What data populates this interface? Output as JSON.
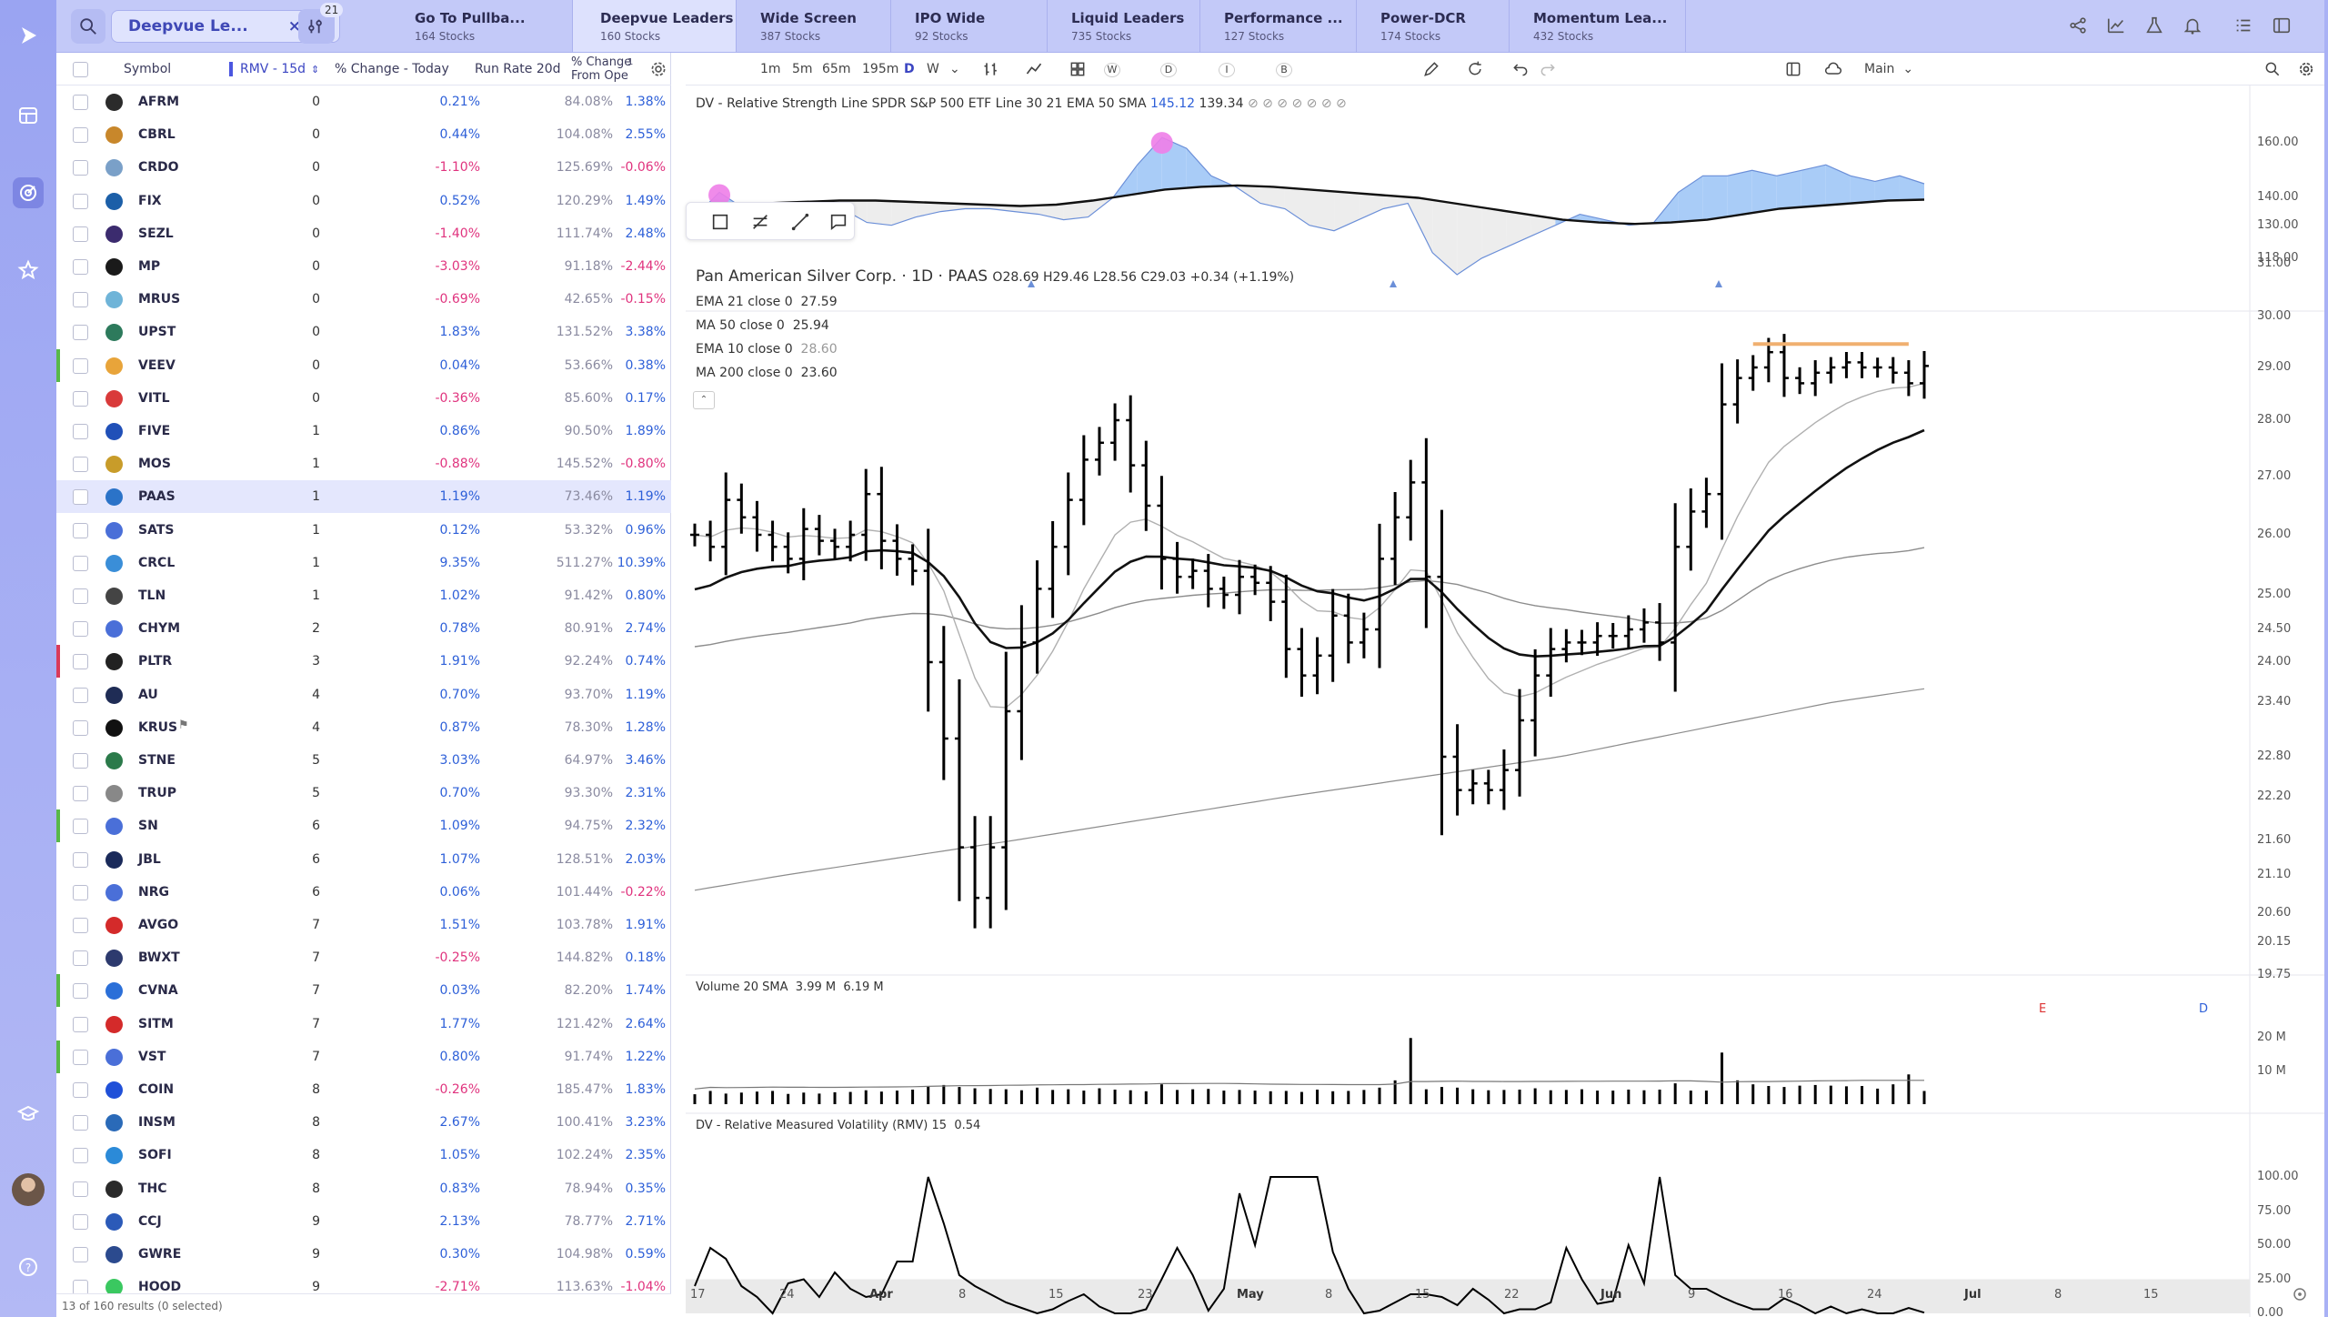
{
  "watchlist": {
    "name": "Deepvue Le...",
    "filter_count": "21"
  },
  "tabs": [
    {
      "name": "Go To Pullba...",
      "count": "164 Stocks"
    },
    {
      "name": "Deepvue Leaders",
      "count": "160 Stocks"
    },
    {
      "name": "Wide Screen",
      "count": "387 Stocks"
    },
    {
      "name": "IPO Wide",
      "count": "92 Stocks"
    },
    {
      "name": "Liquid Leaders",
      "count": "735 Stocks"
    },
    {
      "name": "Performance ...",
      "count": "127 Stocks"
    },
    {
      "name": "Power-DCR",
      "count": "174 Stocks"
    },
    {
      "name": "Momentum Lea...",
      "count": "432 Stocks"
    }
  ],
  "table": {
    "headers": {
      "symbol": "Symbol",
      "rmv": "RMV - 15d",
      "pct": "% Change - Today",
      "rr": "Run Rate 20d",
      "fo1": "% Change",
      "fo2": "From Ope"
    },
    "header_badge": "1",
    "rows": [
      {
        "symbol": "AFRM",
        "rmv": "0",
        "pct": "0.21%",
        "rr": "84.08%",
        "fo": "1.38%"
      },
      {
        "symbol": "CBRL",
        "rmv": "0",
        "pct": "0.44%",
        "rr": "104.08%",
        "fo": "2.55%"
      },
      {
        "symbol": "CRDO",
        "rmv": "0",
        "pct": "-1.10%",
        "rr": "125.69%",
        "fo": "-0.06%"
      },
      {
        "symbol": "FIX",
        "rmv": "0",
        "pct": "0.52%",
        "rr": "120.29%",
        "fo": "1.49%"
      },
      {
        "symbol": "SEZL",
        "rmv": "0",
        "pct": "-1.40%",
        "rr": "111.74%",
        "fo": "2.48%"
      },
      {
        "symbol": "MP",
        "rmv": "0",
        "pct": "-3.03%",
        "rr": "91.18%",
        "fo": "-2.44%"
      },
      {
        "symbol": "MRUS",
        "rmv": "0",
        "pct": "-0.69%",
        "rr": "42.65%",
        "fo": "-0.15%"
      },
      {
        "symbol": "UPST",
        "rmv": "0",
        "pct": "1.83%",
        "rr": "131.52%",
        "fo": "3.38%"
      },
      {
        "symbol": "VEEV",
        "rmv": "0",
        "pct": "0.04%",
        "rr": "53.66%",
        "fo": "0.38%"
      },
      {
        "symbol": "VITL",
        "rmv": "0",
        "pct": "-0.36%",
        "rr": "85.60%",
        "fo": "0.17%"
      },
      {
        "symbol": "FIVE",
        "rmv": "1",
        "pct": "0.86%",
        "rr": "90.50%",
        "fo": "1.89%"
      },
      {
        "symbol": "MOS",
        "rmv": "1",
        "pct": "-0.88%",
        "rr": "145.52%",
        "fo": "-0.80%"
      },
      {
        "symbol": "PAAS",
        "rmv": "1",
        "pct": "1.19%",
        "rr": "73.46%",
        "fo": "1.19%"
      },
      {
        "symbol": "SATS",
        "rmv": "1",
        "pct": "0.12%",
        "rr": "53.32%",
        "fo": "0.96%"
      },
      {
        "symbol": "CRCL",
        "rmv": "1",
        "pct": "9.35%",
        "rr": "511.27%",
        "fo": "10.39%"
      },
      {
        "symbol": "TLN",
        "rmv": "1",
        "pct": "1.02%",
        "rr": "91.42%",
        "fo": "0.80%"
      },
      {
        "symbol": "CHYM",
        "rmv": "2",
        "pct": "0.78%",
        "rr": "80.91%",
        "fo": "2.74%"
      },
      {
        "symbol": "PLTR",
        "rmv": "3",
        "pct": "1.91%",
        "rr": "92.24%",
        "fo": "0.74%"
      },
      {
        "symbol": "AU",
        "rmv": "4",
        "pct": "0.70%",
        "rr": "93.70%",
        "fo": "1.19%"
      },
      {
        "symbol": "KRUS",
        "rmv": "4",
        "pct": "0.87%",
        "rr": "78.30%",
        "fo": "1.28%"
      },
      {
        "symbol": "STNE",
        "rmv": "5",
        "pct": "3.03%",
        "rr": "64.97%",
        "fo": "3.46%"
      },
      {
        "symbol": "TRUP",
        "rmv": "5",
        "pct": "0.70%",
        "rr": "93.30%",
        "fo": "2.31%"
      },
      {
        "symbol": "SN",
        "rmv": "6",
        "pct": "1.09%",
        "rr": "94.75%",
        "fo": "2.32%"
      },
      {
        "symbol": "JBL",
        "rmv": "6",
        "pct": "1.07%",
        "rr": "128.51%",
        "fo": "2.03%"
      },
      {
        "symbol": "NRG",
        "rmv": "6",
        "pct": "0.06%",
        "rr": "101.44%",
        "fo": "-0.22%"
      },
      {
        "symbol": "AVGO",
        "rmv": "7",
        "pct": "1.51%",
        "rr": "103.78%",
        "fo": "1.91%"
      },
      {
        "symbol": "BWXT",
        "rmv": "7",
        "pct": "-0.25%",
        "rr": "144.82%",
        "fo": "0.18%"
      },
      {
        "symbol": "CVNA",
        "rmv": "7",
        "pct": "0.03%",
        "rr": "82.20%",
        "fo": "1.74%"
      },
      {
        "symbol": "SITM",
        "rmv": "7",
        "pct": "1.77%",
        "rr": "121.42%",
        "fo": "2.64%"
      },
      {
        "symbol": "VST",
        "rmv": "7",
        "pct": "0.80%",
        "rr": "91.74%",
        "fo": "1.22%"
      },
      {
        "symbol": "COIN",
        "rmv": "8",
        "pct": "-0.26%",
        "rr": "185.47%",
        "fo": "1.83%"
      },
      {
        "symbol": "INSM",
        "rmv": "8",
        "pct": "2.67%",
        "rr": "100.41%",
        "fo": "3.23%"
      },
      {
        "symbol": "SOFI",
        "rmv": "8",
        "pct": "1.05%",
        "rr": "102.24%",
        "fo": "2.35%"
      },
      {
        "symbol": "THC",
        "rmv": "8",
        "pct": "0.83%",
        "rr": "78.94%",
        "fo": "0.35%"
      },
      {
        "symbol": "CCJ",
        "rmv": "9",
        "pct": "2.13%",
        "rr": "78.77%",
        "fo": "2.71%"
      },
      {
        "symbol": "GWRE",
        "rmv": "9",
        "pct": "0.30%",
        "rr": "104.98%",
        "fo": "0.59%"
      },
      {
        "symbol": "HOOD",
        "rmv": "9",
        "pct": "-2.71%",
        "rr": "113.63%",
        "fo": "-1.04%"
      }
    ],
    "footer": "13 of 160 results (0 selected)"
  },
  "chart_toolbar": {
    "intervals": [
      "1m",
      "5m",
      "65m",
      "195m",
      "D",
      "W"
    ],
    "small": [
      "W",
      "D",
      "I",
      "B"
    ],
    "layout": "Main"
  },
  "chart": {
    "rs_legend": {
      "name": "DV - Relative Strength Line SPDR S&P 500 ETF Line 30 21 EMA 50 SMA",
      "v1": "145.12",
      "v2": "139.34",
      "dots": "⊘ ⊘ ⊘ ⊘ ⊘ ⊘ ⊘"
    },
    "title": "Pan American Silver Corp. · 1D · PAAS",
    "ohlc": "O28.69 H29.46 L28.56 C29.03 +0.34 (+1.19%)",
    "studies": [
      {
        "label": "EMA 21 close 0",
        "value": "27.59"
      },
      {
        "label": "MA 50 close 0",
        "value": "25.94"
      },
      {
        "label": "EMA 10 close 0",
        "value": "28.60"
      },
      {
        "label": "MA 200 close 0",
        "value": "23.60"
      }
    ],
    "volume_legend": {
      "name": "Volume 20 SMA",
      "v1": "3.99 M",
      "v2": "6.19 M"
    },
    "rmv_legend": {
      "name": "DV - Relative Measured Volatility (RMV) 15",
      "value": "0.54"
    },
    "earnings_marker": "E",
    "dividend_marker": "D",
    "x_labels": [
      {
        "t": "17",
        "x": 9
      },
      {
        "t": "24",
        "x": 107
      },
      {
        "t": "Apr",
        "x": 206,
        "b": true
      },
      {
        "t": "8",
        "x": 304
      },
      {
        "t": "15",
        "x": 403
      },
      {
        "t": "23",
        "x": 501
      },
      {
        "t": "May",
        "x": 610,
        "b": true
      },
      {
        "t": "8",
        "x": 707
      },
      {
        "t": "15",
        "x": 806
      },
      {
        "t": "22",
        "x": 904
      },
      {
        "t": "Jun",
        "x": 1010,
        "b": true
      },
      {
        "t": "9",
        "x": 1106
      },
      {
        "t": "16",
        "x": 1205
      },
      {
        "t": "24",
        "x": 1303
      },
      {
        "t": "Jul",
        "x": 1410,
        "b": true
      },
      {
        "t": "8",
        "x": 1509
      },
      {
        "t": "15",
        "x": 1607
      }
    ]
  },
  "chart_data": [
    {
      "type": "ohlc",
      "title": "Pan American Silver Corp. · 1D · PAAS",
      "x_ticks": [
        "17",
        "24",
        "Apr",
        "8",
        "15",
        "23",
        "May",
        "8",
        "15",
        "22",
        "Jun",
        "9",
        "16",
        "24",
        "Jul",
        "8",
        "15"
      ],
      "y_ticks": [
        31.0,
        30.0,
        29.0,
        28.0,
        27.0,
        26.0,
        25.0,
        24.5,
        24.0,
        23.4,
        22.8,
        22.2,
        21.6,
        21.1,
        20.6,
        20.15,
        19.75
      ],
      "y_tick_labels": [
        "31.00",
        "30.00",
        "29.00",
        "28.00",
        "27.00",
        "26.00",
        "25.00",
        "24.50",
        "24.00",
        "23.40",
        "22.80",
        "22.20",
        "21.60",
        "21.10",
        "20.60",
        "20.15",
        "19.75"
      ],
      "closes": [
        26.0,
        25.8,
        26.6,
        26.3,
        26.0,
        25.8,
        25.6,
        26.1,
        25.9,
        25.8,
        26.0,
        26.7,
        25.9,
        25.6,
        25.4,
        24.0,
        23.0,
        21.5,
        20.8,
        21.5,
        23.3,
        24.3,
        25.1,
        25.8,
        26.6,
        27.3,
        27.6,
        28.0,
        27.2,
        26.5,
        25.6,
        25.3,
        25.4,
        25.1,
        25.0,
        25.3,
        25.2,
        24.9,
        24.2,
        23.8,
        24.1,
        24.7,
        24.3,
        24.5,
        25.6,
        26.3,
        26.9,
        25.3,
        22.8,
        22.3,
        22.4,
        22.3,
        22.6,
        23.2,
        23.8,
        24.2,
        24.3,
        24.3,
        24.4,
        24.4,
        24.5,
        24.6,
        24.3,
        25.8,
        26.4,
        26.7,
        28.3,
        28.8,
        29.0,
        29.3,
        28.8,
        28.7,
        28.9,
        29.0,
        29.1,
        29.0,
        29.0,
        28.9,
        28.7,
        29.03
      ],
      "series": [
        {
          "name": "EMA 21 close 0",
          "last": 27.59
        },
        {
          "name": "MA 50 close 0",
          "last": 25.94
        },
        {
          "name": "EMA 10 close 0",
          "last": 28.6
        },
        {
          "name": "MA 200 close 0",
          "last": 23.6
        }
      ],
      "ylim": [
        19.75,
        31.0
      ]
    },
    {
      "type": "bar",
      "title": "Volume 20 SMA",
      "y_ticks": [
        "20 M",
        "10 M"
      ],
      "values": [
        3,
        4,
        3.2,
        3.5,
        3.8,
        4,
        3.1,
        3.5,
        3.2,
        3.6,
        3.7,
        4.2,
        3.8,
        4.1,
        4.4,
        5.5,
        5.8,
        5.2,
        4.8,
        4.6,
        4.5,
        4.2,
        5,
        4.3,
        4.5,
        4.1,
        4.8,
        4.4,
        4.2,
        3.9,
        6,
        4.3,
        4.5,
        4.6,
        4.1,
        4.3,
        4.1,
        3.9,
        4,
        3.7,
        4.4,
        3.9,
        4,
        4.3,
        5,
        7.2,
        20,
        4.5,
        5.2,
        5,
        4.5,
        4.2,
        4.3,
        4.4,
        4.8,
        4.2,
        4.3,
        4.5,
        4.1,
        4.1,
        4.4,
        4.2,
        4.4,
        6.3,
        4.1,
        4.1,
        15.6,
        7.2,
        6,
        5.5,
        5.2,
        5.6,
        5.8,
        5.6,
        5.4,
        5.5,
        4.7,
        6,
        9,
        3.99
      ],
      "sma": 6.19,
      "ylim": [
        0,
        22
      ]
    },
    {
      "type": "line",
      "title": "DV - Relative Measured Volatility (RMV) 15",
      "y_ticks": [
        100,
        75,
        50,
        25,
        0
      ],
      "y_tick_labels": [
        "100.00",
        "75.00",
        "50.00",
        "25.00",
        "0.00"
      ],
      "values": [
        20,
        48,
        40,
        20,
        12,
        0,
        22,
        25,
        12,
        30,
        18,
        12,
        14,
        38,
        38,
        100,
        66,
        28,
        20,
        14,
        8,
        4,
        0,
        3,
        9,
        14,
        5,
        0,
        0,
        3,
        25,
        48,
        28,
        2,
        18,
        88,
        50,
        100,
        100,
        100,
        100,
        45,
        18,
        0,
        2,
        8,
        14,
        14,
        12,
        6,
        18,
        10,
        0,
        3,
        3,
        8,
        48,
        25,
        7,
        9,
        50,
        22,
        100,
        28,
        18,
        18,
        12,
        7,
        3,
        3,
        11,
        6,
        0,
        5,
        0,
        3,
        0,
        0,
        4,
        0.54
      ],
      "ylim": [
        0,
        100
      ]
    },
    {
      "type": "area",
      "title": "DV - Relative Strength Line SPDR S&P 500 ETF Line 30 21 EMA 50 SMA",
      "y_ticks": [
        160,
        140,
        130,
        118
      ],
      "y_tick_labels": [
        "160.00",
        "140.00",
        "130.00",
        "118.00"
      ],
      "values": [
        133,
        142,
        136,
        138,
        137,
        138,
        136,
        131,
        130,
        133,
        135,
        136,
        136,
        135,
        134,
        132,
        133,
        140,
        152,
        162,
        158,
        148,
        144,
        138,
        136,
        130,
        128,
        132,
        136,
        138,
        120,
        112,
        118,
        122,
        126,
        130,
        134,
        132,
        130,
        131,
        142,
        148,
        148,
        150,
        148,
        150,
        152,
        148,
        146,
        148,
        145.12
      ],
      "ma": [
        136,
        137,
        138,
        138.5,
        139,
        139,
        138.5,
        138,
        137.5,
        137,
        137.5,
        139,
        141,
        143,
        144,
        144.5,
        144,
        143,
        142,
        141,
        140,
        138,
        136,
        134,
        132,
        131,
        130.5,
        131,
        132,
        134,
        136,
        137,
        138,
        139,
        139.34
      ],
      "ylim": [
        112,
        165
      ]
    }
  ]
}
